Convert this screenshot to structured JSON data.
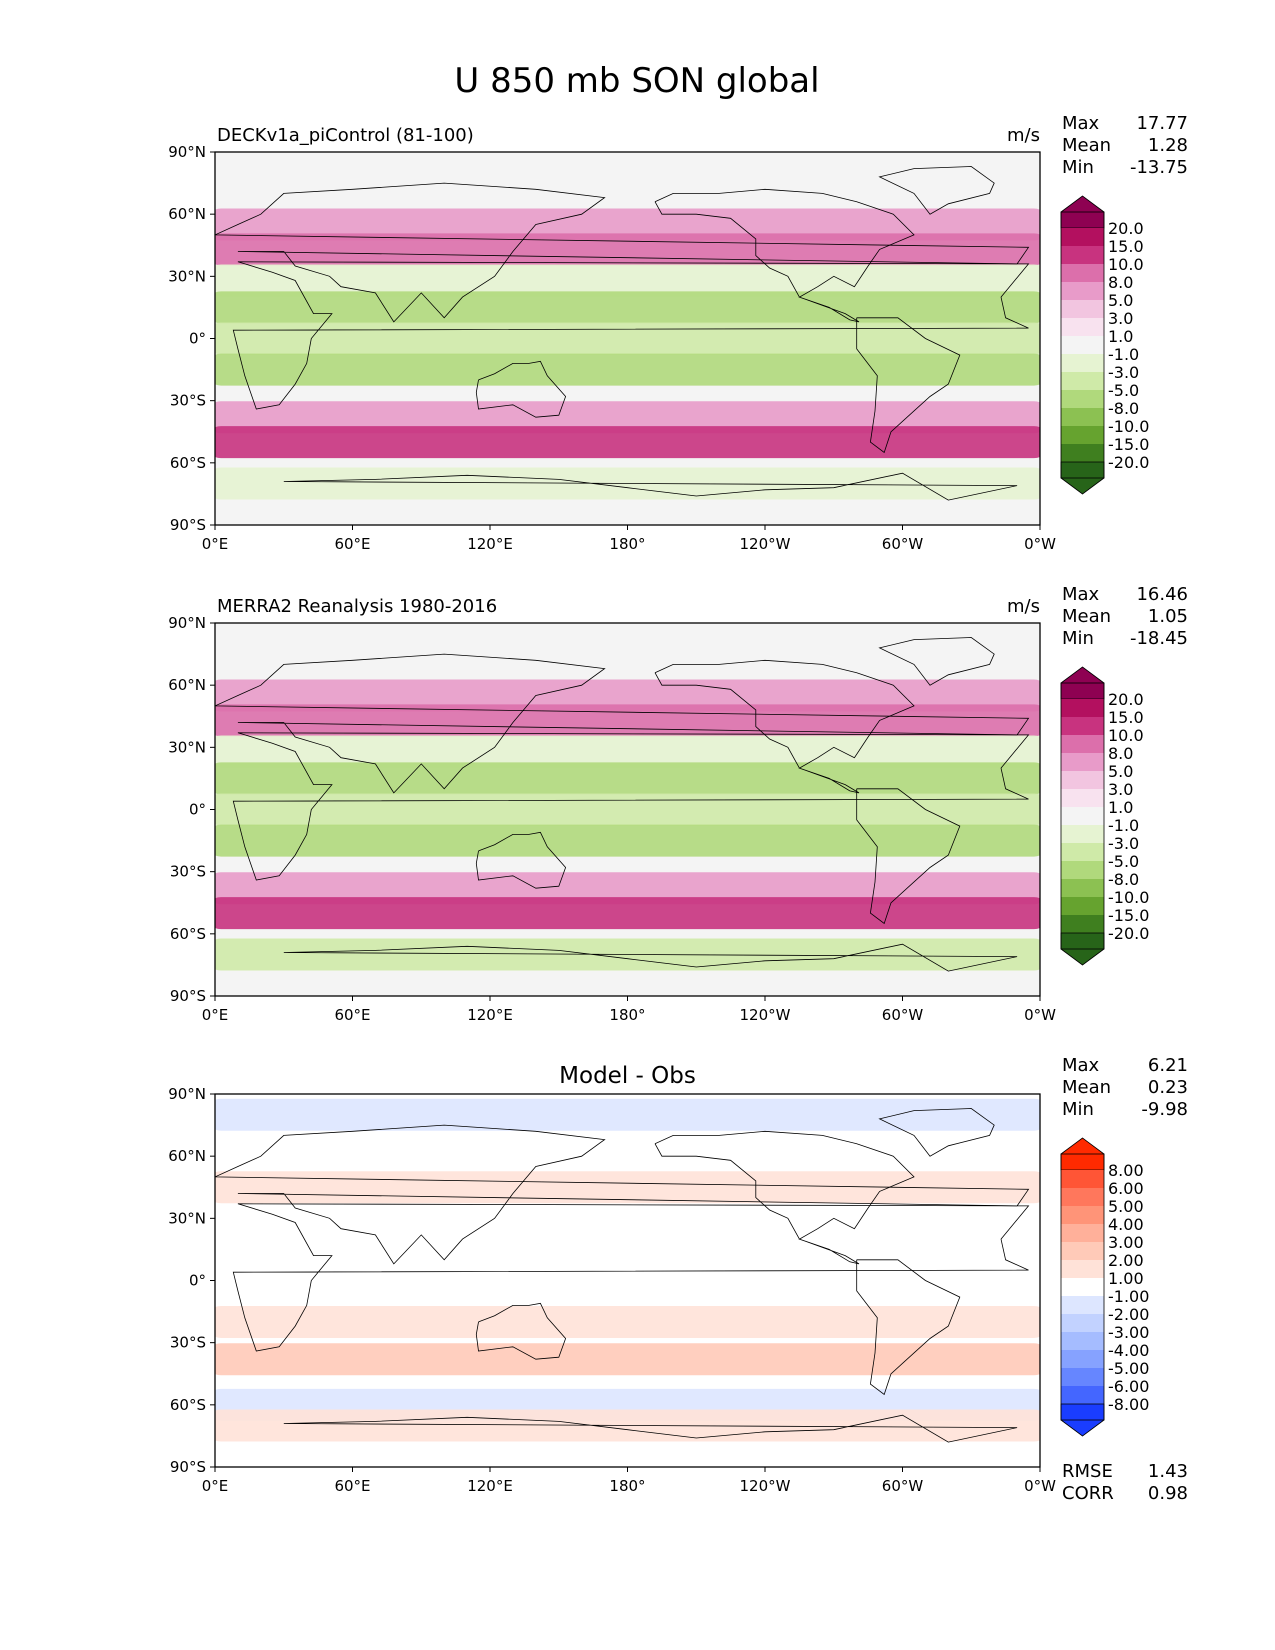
{
  "page_title": "U 850 mb SON global",
  "units": "m/s",
  "xtick_labels": [
    "0°E",
    "60°E",
    "120°E",
    "180°",
    "120°W",
    "60°W",
    "0°W"
  ],
  "ytick_labels": [
    "90°N",
    "60°N",
    "30°N",
    "0°",
    "30°S",
    "60°S",
    "90°S"
  ],
  "stat_labels": {
    "max": "Max",
    "mean": "Mean",
    "min": "Min",
    "rmse": "RMSE",
    "corr": "CORR"
  },
  "chart_data": [
    {
      "type": "heatmap",
      "title": "DECKv1a_piControl (81-100)",
      "units": "m/s",
      "stats": {
        "max": "17.77",
        "mean": "1.28",
        "min": "-13.75"
      },
      "colorbar": {
        "labels": [
          "20.0",
          "15.0",
          "10.0",
          "8.0",
          "5.0",
          "3.0",
          "1.0",
          "-1.0",
          "-3.0",
          "-5.0",
          "-8.0",
          "-10.0",
          "-15.0",
          "-20.0"
        ],
        "colors": [
          "#8e0152",
          "#b3105f",
          "#c8337f",
          "#dc6fab",
          "#e89bc9",
          "#f2c5e0",
          "#f8e2ef",
          "#f4f4f4",
          "#e6f3d2",
          "#cfeaa8",
          "#b0d97c",
          "#8cc152",
          "#66a32f",
          "#3f7f1f",
          "#276419"
        ]
      },
      "xlim": [
        0,
        360
      ],
      "ylim": [
        -90,
        90
      ],
      "ticks_x": [
        0,
        60,
        120,
        180,
        240,
        300,
        360
      ],
      "ticks_y": [
        90,
        60,
        30,
        0,
        -30,
        -60,
        -90
      ],
      "bands": [
        {
          "lat": 55,
          "value": 6
        },
        {
          "lat": 43,
          "value": 9
        },
        {
          "lat": 28,
          "value": -2
        },
        {
          "lat": 15,
          "value": -6
        },
        {
          "lat": 0,
          "value": -4
        },
        {
          "lat": -15,
          "value": -6
        },
        {
          "lat": -38,
          "value": 5
        },
        {
          "lat": -50,
          "value": 12
        },
        {
          "lat": -70,
          "value": -3
        }
      ]
    },
    {
      "type": "heatmap",
      "title": "MERRA2 Reanalysis 1980-2016",
      "units": "m/s",
      "stats": {
        "max": "16.46",
        "mean": "1.05",
        "min": "-18.45"
      },
      "colorbar": {
        "labels": [
          "20.0",
          "15.0",
          "10.0",
          "8.0",
          "5.0",
          "3.0",
          "1.0",
          "-1.0",
          "-3.0",
          "-5.0",
          "-8.0",
          "-10.0",
          "-15.0",
          "-20.0"
        ],
        "colors": [
          "#8e0152",
          "#b3105f",
          "#c8337f",
          "#dc6fab",
          "#e89bc9",
          "#f2c5e0",
          "#f8e2ef",
          "#f4f4f4",
          "#e6f3d2",
          "#cfeaa8",
          "#b0d97c",
          "#8cc152",
          "#66a32f",
          "#3f7f1f",
          "#276419"
        ]
      },
      "xlim": [
        0,
        360
      ],
      "ylim": [
        -90,
        90
      ],
      "ticks_x": [
        0,
        60,
        120,
        180,
        240,
        300,
        360
      ],
      "ticks_y": [
        90,
        60,
        30,
        0,
        -30,
        -60,
        -90
      ],
      "bands": [
        {
          "lat": 55,
          "value": 5
        },
        {
          "lat": 43,
          "value": 8
        },
        {
          "lat": 28,
          "value": -2
        },
        {
          "lat": 15,
          "value": -6
        },
        {
          "lat": 0,
          "value": -5
        },
        {
          "lat": -15,
          "value": -6
        },
        {
          "lat": -38,
          "value": 5
        },
        {
          "lat": -50,
          "value": 13
        },
        {
          "lat": -70,
          "value": -4
        }
      ]
    },
    {
      "type": "heatmap",
      "title": "Model - Obs",
      "units": "",
      "stats": {
        "max": "6.21",
        "mean": "0.23",
        "min": "-9.98",
        "rmse": "1.43",
        "corr": "0.98"
      },
      "colorbar": {
        "labels": [
          "8.00",
          "6.00",
          "5.00",
          "4.00",
          "3.00",
          "2.00",
          "1.00",
          "-1.00",
          "-2.00",
          "-3.00",
          "-4.00",
          "-5.00",
          "-6.00",
          "-8.00"
        ],
        "colors": [
          "#ff2a00",
          "#ff5536",
          "#ff775c",
          "#ff9478",
          "#ffb09a",
          "#ffcab8",
          "#ffe2d8",
          "#ffffff",
          "#dde6ff",
          "#c2d2ff",
          "#a5bcff",
          "#86a2ff",
          "#6686ff",
          "#4466ff",
          "#1a3dff"
        ]
      },
      "xlim": [
        0,
        360
      ],
      "ylim": [
        -90,
        90
      ],
      "ticks_x": [
        0,
        60,
        120,
        180,
        240,
        300,
        360
      ],
      "ticks_y": [
        90,
        60,
        30,
        0,
        -30,
        -60,
        -90
      ],
      "bands": [
        {
          "lat": 80,
          "value": -1.5
        },
        {
          "lat": 45,
          "value": 1.5
        },
        {
          "lat": 25,
          "value": -1
        },
        {
          "lat": 0,
          "value": 0
        },
        {
          "lat": -20,
          "value": 1
        },
        {
          "lat": -38,
          "value": 2
        },
        {
          "lat": -60,
          "value": -1.5
        },
        {
          "lat": -70,
          "value": 1
        }
      ]
    }
  ]
}
